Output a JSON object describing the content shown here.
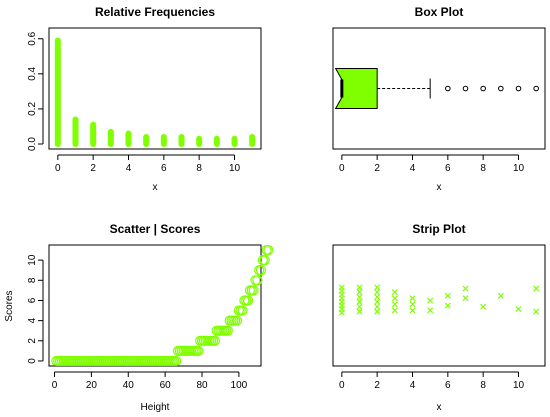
{
  "colors": {
    "accent": "#7FFF00",
    "ink": "#000000",
    "background": "#ffffff"
  },
  "chart_data": [
    {
      "type": "bar",
      "style": "histogram-lines",
      "title": "Relative Frequencies",
      "xlabel": "x",
      "ylabel": "",
      "x": [
        0,
        1,
        2,
        3,
        4,
        5,
        6,
        7,
        8,
        9,
        10,
        11
      ],
      "values": [
        0.59,
        0.14,
        0.11,
        0.07,
        0.06,
        0.04,
        0.04,
        0.04,
        0.03,
        0.03,
        0.03,
        0.04
      ],
      "xlim": [
        -0.5,
        11.5
      ],
      "ylim": [
        0,
        0.65
      ],
      "xticks": [
        0,
        2,
        4,
        6,
        8,
        10
      ],
      "yticks": [
        0.0,
        0.2,
        0.4,
        0.6
      ],
      "ytick_labels": [
        "0.0",
        "0.2",
        "0.4",
        "0.6"
      ],
      "color": "#7FFF00"
    },
    {
      "type": "box",
      "notched": true,
      "title": "Box Plot",
      "xlabel": "x",
      "xlim": [
        -0.5,
        11.5
      ],
      "xticks": [
        0,
        2,
        4,
        6,
        8,
        10
      ],
      "stats": {
        "min": 0,
        "q1": 0,
        "median": 0,
        "q3": 2,
        "whisker_high": 5,
        "notch_low": -0.35,
        "notch_high": 0.35
      },
      "outliers": [
        6,
        7,
        8,
        9,
        10,
        11
      ],
      "color": "#7FFF00"
    },
    {
      "type": "scatter",
      "marker": "open-circle",
      "title": "Scatter | Scores",
      "xlabel": "Height",
      "ylabel": "Scores",
      "xlim": [
        -3,
        112
      ],
      "ylim": [
        -0.5,
        11.5
      ],
      "xticks": [
        0,
        20,
        40,
        60,
        80,
        100
      ],
      "yticks": [
        0,
        2,
        4,
        6,
        8,
        10
      ],
      "counts_per_score": [
        66,
        12,
        9,
        7,
        5,
        3,
        3,
        3,
        2,
        2,
        2,
        2
      ],
      "color": "#7FFF00"
    },
    {
      "type": "scatter",
      "marker": "x",
      "style": "strip",
      "title": "Strip Plot",
      "xlabel": "x",
      "xlim": [
        -0.5,
        11.5
      ],
      "ylim": [
        0,
        10
      ],
      "xticks": [
        0,
        2,
        4,
        6,
        8,
        10
      ],
      "points": [
        {
          "x": 0,
          "y": 4.4
        },
        {
          "x": 0,
          "y": 4.7
        },
        {
          "x": 0,
          "y": 5.0
        },
        {
          "x": 0,
          "y": 5.3
        },
        {
          "x": 0,
          "y": 5.6
        },
        {
          "x": 0,
          "y": 5.9
        },
        {
          "x": 0,
          "y": 6.2
        },
        {
          "x": 0,
          "y": 6.5
        },
        {
          "x": 1,
          "y": 4.5
        },
        {
          "x": 1,
          "y": 4.9
        },
        {
          "x": 1,
          "y": 5.3
        },
        {
          "x": 1,
          "y": 5.7
        },
        {
          "x": 1,
          "y": 6.1
        },
        {
          "x": 1,
          "y": 6.5
        },
        {
          "x": 2,
          "y": 4.5
        },
        {
          "x": 2,
          "y": 4.9
        },
        {
          "x": 2,
          "y": 5.3
        },
        {
          "x": 2,
          "y": 5.7
        },
        {
          "x": 2,
          "y": 6.1
        },
        {
          "x": 2,
          "y": 6.5
        },
        {
          "x": 3,
          "y": 4.6
        },
        {
          "x": 3,
          "y": 5.1
        },
        {
          "x": 3,
          "y": 5.6
        },
        {
          "x": 3,
          "y": 6.1
        },
        {
          "x": 4,
          "y": 4.6
        },
        {
          "x": 4,
          "y": 5.1
        },
        {
          "x": 4,
          "y": 5.6
        },
        {
          "x": 5,
          "y": 4.6
        },
        {
          "x": 5,
          "y": 5.4
        },
        {
          "x": 6,
          "y": 5.0
        },
        {
          "x": 6,
          "y": 5.8
        },
        {
          "x": 7,
          "y": 5.6
        },
        {
          "x": 7,
          "y": 6.4
        },
        {
          "x": 8,
          "y": 4.9
        },
        {
          "x": 9,
          "y": 5.8
        },
        {
          "x": 10,
          "y": 4.7
        },
        {
          "x": 11,
          "y": 4.5
        },
        {
          "x": 11,
          "y": 6.4
        }
      ],
      "color": "#7FFF00"
    }
  ]
}
